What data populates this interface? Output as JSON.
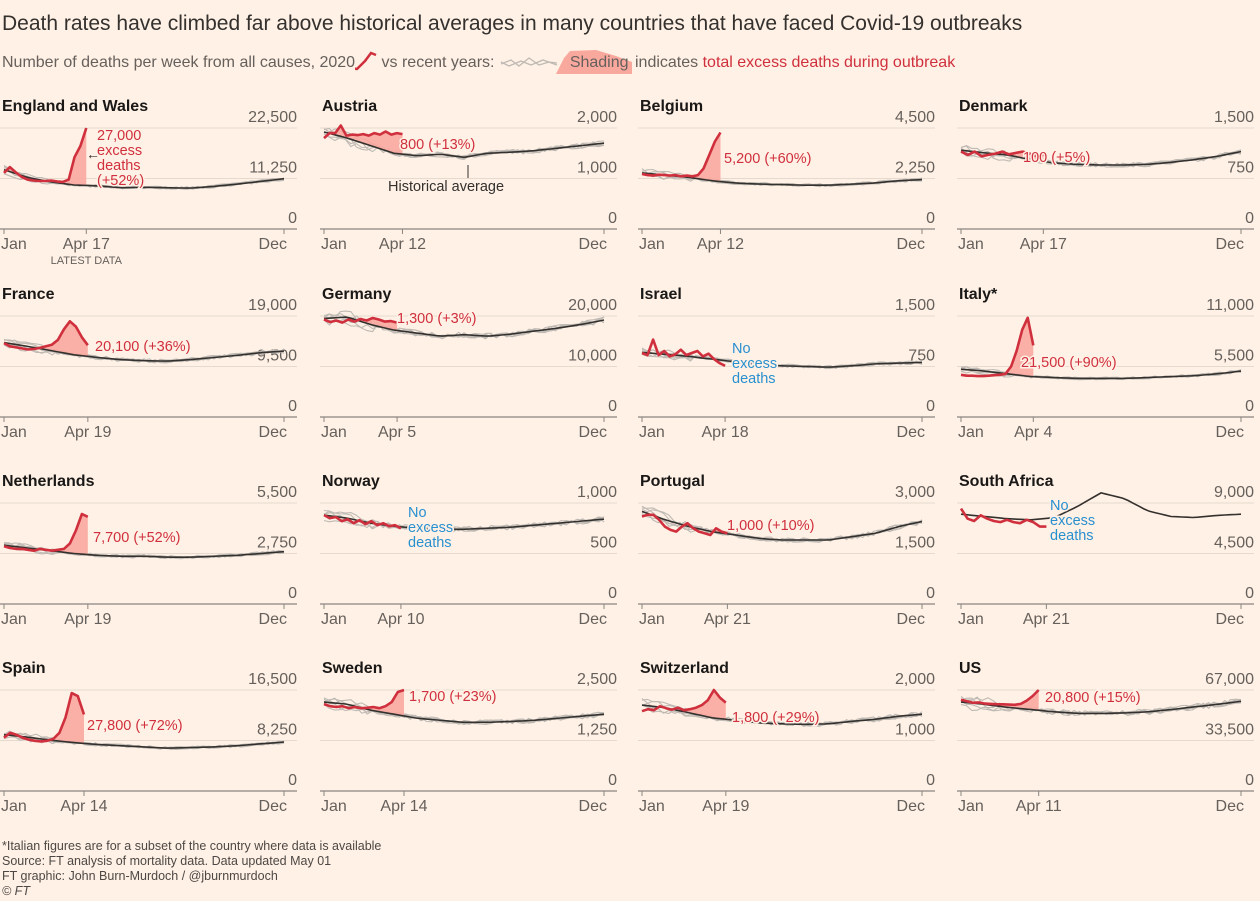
{
  "header": {
    "title": "Death rates have climbed far above historical averages in many countries that have faced Covid-19 outbreaks",
    "subtitle_part1": "Number of deaths per week from all causes,",
    "subtitle_year": "2020",
    "subtitle_part2": "vs recent years:",
    "subtitle_shading": "Shading",
    "subtitle_part3": "indicates",
    "subtitle_excess": "total excess deaths during outbreak"
  },
  "footer": {
    "note": "*Italian figures are for a subset of the country where data is available",
    "source": "Source: FT analysis of mortality data. Data updated May 01",
    "credit": "FT graphic: John Burn-Murdoch / @jburnmurdoch",
    "copyright": "© FT"
  },
  "colors": {
    "background": "#fff1e5",
    "series_2020": "#d0303d",
    "shading": "#f9a89e",
    "recent_years": "#bfbab4",
    "historical_average": "#33302e",
    "no_excess": "#2990d0"
  },
  "chart_data": {
    "type": "line",
    "x_start_label": "Jan",
    "x_end_label": "Dec",
    "latest_data_label": "LATEST DATA",
    "historical_average_label": "Historical average",
    "grid": true,
    "panels": [
      {
        "name": "England and Wales",
        "yticks": [
          "0",
          "11,250",
          "22,500"
        ],
        "ymax": 22500,
        "latest": "Apr 17",
        "v2020": [
          12500,
          13800,
          12600,
          11600,
          11000,
          10800,
          10700,
          10700,
          10800,
          10600,
          10500,
          11000,
          16000,
          18500,
          22500
        ],
        "avg": [
          13200,
          11500,
          10500,
          9800,
          9600,
          9200,
          9300,
          9200,
          9100,
          9500,
          10000,
          10600,
          11200
        ],
        "annotation": [
          "27,000",
          "excess",
          "deaths",
          "(+52%)"
        ],
        "annotation_type": "excess"
      },
      {
        "name": "Austria",
        "yticks": [
          "0",
          "1,000",
          "2,000"
        ],
        "ymax": 2000,
        "latest": "Apr 12",
        "v2020": [
          1800,
          1900,
          1900,
          2050,
          1850,
          1870,
          1860,
          1880,
          1850,
          1900,
          1870,
          1930,
          1870,
          1900,
          1880
        ],
        "avg": [
          1920,
          1800,
          1650,
          1500,
          1450,
          1480,
          1420,
          1500,
          1520,
          1550,
          1600,
          1650,
          1700
        ],
        "annotation": [
          "800 (+13%)"
        ],
        "annotation_type": "excess"
      },
      {
        "name": "Belgium",
        "yticks": [
          "0",
          "2,250",
          "4,500"
        ],
        "ymax": 4500,
        "latest": "Apr 12",
        "v2020": [
          2450,
          2400,
          2380,
          2420,
          2400,
          2380,
          2400,
          2350,
          2380,
          2350,
          2400,
          2700,
          3300,
          3900,
          4300
        ],
        "avg": [
          2500,
          2400,
          2300,
          2150,
          2050,
          2000,
          1980,
          1950,
          1950,
          2000,
          2050,
          2150,
          2200
        ],
        "annotation": [
          "5,200 (+60%)"
        ],
        "annotation_type": "excess"
      },
      {
        "name": "Denmark",
        "yticks": [
          "0",
          "750",
          "1,500"
        ],
        "ymax": 1500,
        "latest": "Apr 17",
        "v2020": [
          1150,
          1100,
          1150,
          1080,
          1100,
          1120,
          1150,
          1110,
          1130,
          1150,
          1120,
          1080,
          1100
        ],
        "avg": [
          1170,
          1130,
          1100,
          1030,
          980,
          960,
          950,
          950,
          960,
          990,
          1030,
          1080,
          1150
        ],
        "annotation": [
          "100 (+5%)"
        ],
        "annotation_type": "excess"
      },
      {
        "name": "France",
        "yticks": [
          "0",
          "9,500",
          "19,000"
        ],
        "ymax": 19000,
        "latest": "Apr 19",
        "v2020": [
          13900,
          13300,
          13100,
          12900,
          12700,
          12800,
          13000,
          13300,
          13600,
          14500,
          16500,
          18000,
          17000,
          15000,
          13500
        ],
        "avg": [
          14000,
          13300,
          12500,
          11700,
          11200,
          10800,
          10600,
          10500,
          10800,
          11200,
          11600,
          12100,
          12400
        ],
        "annotation": [
          "20,100 (+36%)"
        ],
        "annotation_type": "excess"
      },
      {
        "name": "Germany",
        "yticks": [
          "0",
          "10,000",
          "20,000"
        ],
        "ymax": 20000,
        "latest": "Apr 5",
        "v2020": [
          19300,
          18800,
          19100,
          18700,
          19300,
          18900,
          19400,
          19100,
          19600,
          19300,
          18900,
          19000,
          18700
        ],
        "avg": [
          19500,
          19800,
          18300,
          17200,
          16600,
          16000,
          16300,
          16000,
          16400,
          17000,
          17600,
          18300,
          19200
        ],
        "annotation": [
          "1,300 (+3%)"
        ],
        "annotation_type": "excess"
      },
      {
        "name": "Israel",
        "yticks": [
          "0",
          "750",
          "1,500"
        ],
        "ymax": 1500,
        "latest": "Apr 18",
        "v2020": [
          950,
          920,
          1150,
          920,
          980,
          900,
          930,
          1000,
          920,
          950,
          980,
          900,
          940,
          860,
          800,
          760
        ],
        "avg": [
          960,
          930,
          900,
          860,
          820,
          780,
          760,
          750,
          740,
          760,
          790,
          800,
          810
        ],
        "annotation": [
          "No",
          "excess",
          "deaths"
        ],
        "annotation_type": "none"
      },
      {
        "name": "Italy*",
        "yticks": [
          "0",
          "5,500",
          "11,000"
        ],
        "ymax": 11000,
        "latest": "Apr 4",
        "v2020": [
          4600,
          4500,
          4500,
          4450,
          4450,
          4500,
          4550,
          4600,
          4700,
          5500,
          7200,
          9500,
          10800,
          7800
        ],
        "avg": [
          5200,
          5000,
          4700,
          4400,
          4300,
          4200,
          4200,
          4200,
          4300,
          4400,
          4500,
          4700,
          5000
        ],
        "annotation": [
          "21,500 (+90%)"
        ],
        "annotation_type": "excess"
      },
      {
        "name": "Netherlands",
        "yticks": [
          "0",
          "2,750",
          "5,500"
        ],
        "ymax": 5500,
        "latest": "Apr 19",
        "v2020": [
          3150,
          3050,
          3000,
          3000,
          2950,
          2900,
          3000,
          2950,
          2900,
          2950,
          3000,
          3300,
          4000,
          4900,
          4750
        ],
        "avg": [
          3200,
          3050,
          2900,
          2750,
          2650,
          2600,
          2600,
          2550,
          2550,
          2600,
          2650,
          2750,
          2850
        ],
        "annotation": [
          "7,700 (+52%)"
        ],
        "annotation_type": "excess"
      },
      {
        "name": "Norway",
        "yticks": [
          "0",
          "500",
          "1,000"
        ],
        "ymax": 1000,
        "latest": "Apr 10",
        "v2020": [
          880,
          850,
          860,
          820,
          840,
          800,
          830,
          790,
          820,
          780,
          800,
          770,
          780,
          750
        ],
        "avg": [
          880,
          850,
          800,
          770,
          750,
          740,
          740,
          750,
          760,
          780,
          800,
          820,
          840
        ],
        "annotation": [
          "No",
          "excess",
          "deaths"
        ],
        "annotation_type": "none"
      },
      {
        "name": "Portugal",
        "yticks": [
          "0",
          "1,500",
          "3,000"
        ],
        "ymax": 3000,
        "latest": "Apr 21",
        "v2020": [
          2600,
          2650,
          2650,
          2500,
          2300,
          2200,
          2150,
          2300,
          2400,
          2250,
          2150,
          2100,
          2050,
          2250,
          2150,
          2100
        ],
        "avg": [
          2750,
          2500,
          2300,
          2150,
          2050,
          1950,
          1900,
          1900,
          1900,
          2000,
          2100,
          2300,
          2450
        ],
        "annotation": [
          "1,000 (+10%)"
        ],
        "annotation_type": "excess"
      },
      {
        "name": "South Africa",
        "yticks": [
          "0",
          "4,500",
          "9,000"
        ],
        "ymax": 9000,
        "latest": "Apr 21",
        "v2020": [
          8500,
          7600,
          7400,
          7900,
          7600,
          7400,
          7300,
          7500,
          7300,
          7200,
          7500,
          7300,
          6900,
          6900
        ],
        "avg": [
          8000,
          7800,
          7600,
          7500,
          7700,
          8700,
          9900,
          9400,
          8300,
          7800,
          7700,
          7900,
          8000
        ],
        "annotation": [
          "No",
          "excess",
          "deaths"
        ],
        "annotation_type": "none"
      },
      {
        "name": "Spain",
        "yticks": [
          "0",
          "8,250",
          "16,500"
        ],
        "ymax": 16500,
        "latest": "Apr 14",
        "v2020": [
          8700,
          9500,
          9200,
          8700,
          8400,
          8200,
          8100,
          8200,
          8500,
          9500,
          12000,
          16000,
          15500,
          12500
        ],
        "avg": [
          9200,
          8800,
          8300,
          7900,
          7600,
          7400,
          7200,
          7000,
          7100,
          7200,
          7400,
          7700,
          8000
        ],
        "annotation": [
          "27,800 (+72%)"
        ],
        "annotation_type": "excess"
      },
      {
        "name": "Sweden",
        "yticks": [
          "0",
          "1,250",
          "2,500"
        ],
        "ymax": 2500,
        "latest": "Apr 14",
        "v2020": [
          2150,
          2100,
          2080,
          2100,
          2050,
          2080,
          2050,
          2060,
          2080,
          2050,
          2100,
          2200,
          2450,
          2500
        ],
        "avg": [
          2200,
          2150,
          2000,
          1900,
          1800,
          1750,
          1700,
          1700,
          1720,
          1750,
          1800,
          1850,
          1900
        ],
        "annotation": [
          "1,700 (+23%)"
        ],
        "annotation_type": "excess"
      },
      {
        "name": "Switzerland",
        "yticks": [
          "0",
          "1,000",
          "2,000"
        ],
        "ymax": 2000,
        "latest": "Apr 19",
        "v2020": [
          1580,
          1620,
          1600,
          1680,
          1640,
          1610,
          1650,
          1600,
          1620,
          1650,
          1700,
          1800,
          2000,
          1850,
          1750
        ],
        "avg": [
          1700,
          1650,
          1550,
          1450,
          1400,
          1350,
          1330,
          1320,
          1330,
          1380,
          1420,
          1480,
          1520
        ],
        "annotation": [
          "1,800 (+29%)"
        ],
        "annotation_type": "excess"
      },
      {
        "name": "US",
        "yticks": [
          "0",
          "33,500",
          "67,000"
        ],
        "ymax": 67000,
        "latest": "Apr 11",
        "v2020": [
          60500,
          59500,
          58500,
          58800,
          58000,
          57800,
          57600,
          57500,
          57300,
          57200,
          57800,
          60000,
          63000,
          67000
        ],
        "avg": [
          59000,
          57500,
          55500,
          54000,
          52500,
          51500,
          51500,
          51800,
          52500,
          54000,
          55800,
          57500,
          59500
        ],
        "annotation": [
          "20,800 (+15%)"
        ],
        "annotation_type": "excess"
      }
    ]
  }
}
